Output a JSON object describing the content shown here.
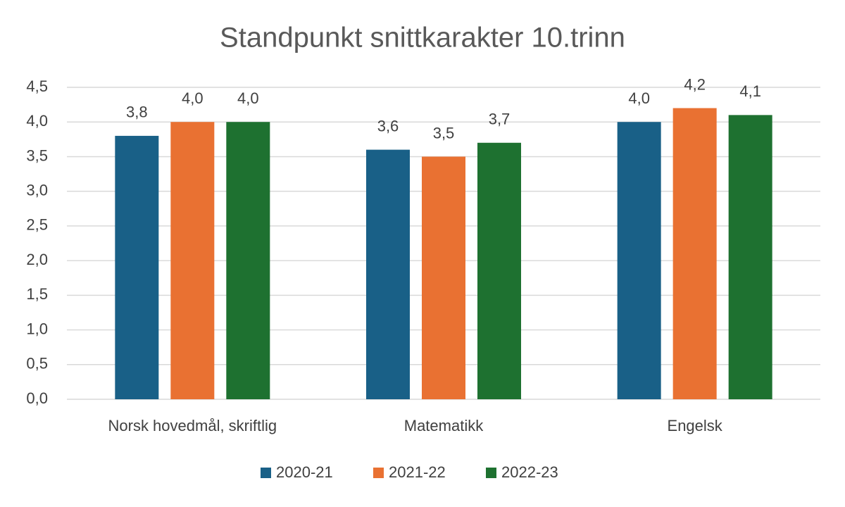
{
  "chart_data": {
    "type": "bar",
    "title": "Standpunkt snittkarakter 10.trinn",
    "categories": [
      "Norsk hovedmål, skriftlig",
      "Matematikk",
      "Engelsk"
    ],
    "series": [
      {
        "name": "2020-21",
        "color": "#196087",
        "values": [
          3.8,
          3.6,
          4.0
        ],
        "value_labels": [
          "3,8",
          "3,6",
          "4,0"
        ]
      },
      {
        "name": "2021-22",
        "color": "#e97132",
        "values": [
          4.0,
          3.5,
          4.2
        ],
        "value_labels": [
          "4,0",
          "3,5",
          "4,2"
        ]
      },
      {
        "name": "2022-23",
        "color": "#1e7130",
        "values": [
          4.0,
          3.7,
          4.1
        ],
        "value_labels": [
          "4,0",
          "3,7",
          "4,1"
        ]
      }
    ],
    "ylim": [
      0,
      4.5
    ],
    "yticks": [
      {
        "value": 0,
        "label": "0,0"
      },
      {
        "value": 0.5,
        "label": "0,5"
      },
      {
        "value": 1,
        "label": "1,0"
      },
      {
        "value": 1.5,
        "label": "1,5"
      },
      {
        "value": 2,
        "label": "2,0"
      },
      {
        "value": 2.5,
        "label": "2,5"
      },
      {
        "value": 3,
        "label": "3,0"
      },
      {
        "value": 3.5,
        "label": "3,5"
      },
      {
        "value": 4,
        "label": "4,0"
      },
      {
        "value": 4.5,
        "label": "4,5"
      }
    ],
    "grid": true,
    "legend": "bottom"
  }
}
